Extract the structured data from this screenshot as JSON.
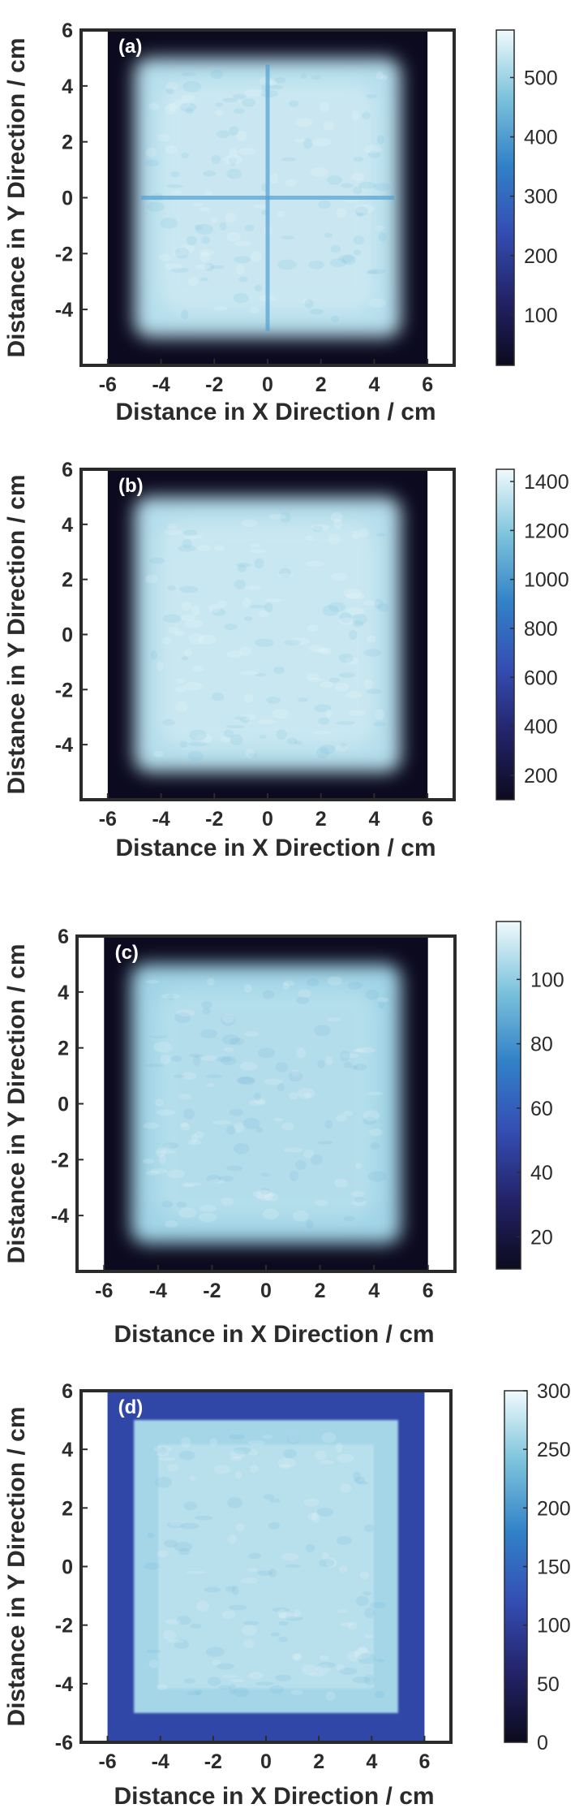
{
  "chart_data": [
    {
      "type": "heatmap",
      "panel_label": "(a)",
      "xlabel": "Distance in X Direction / cm",
      "ylabel": "Distance in Y Direction / cm",
      "xlim": [
        -7,
        7
      ],
      "ylim": [
        -6,
        6
      ],
      "xticks": [
        -6,
        -4,
        -2,
        0,
        2,
        4,
        6
      ],
      "yticks": [
        -4,
        -2,
        0,
        2,
        4,
        6
      ],
      "colorbar_ticks": [
        100,
        200,
        300,
        400,
        500
      ],
      "colorbar_range": [
        15,
        580
      ],
      "field_x": [
        -5.0,
        5.0
      ],
      "field_y": [
        -5.0,
        5.0
      ],
      "peak_value": 560,
      "detector_x": [
        -6.0,
        6.0
      ],
      "feature": "cross-shaped seam at x=0 and y=0"
    },
    {
      "type": "heatmap",
      "panel_label": "(b)",
      "xlabel": "Distance in X Direction / cm",
      "ylabel": "Distance in Y Direction / cm",
      "xlim": [
        -7,
        7
      ],
      "ylim": [
        -6,
        6
      ],
      "xticks": [
        -6,
        -4,
        -2,
        0,
        2,
        4,
        6
      ],
      "yticks": [
        -4,
        -2,
        0,
        2,
        4,
        6
      ],
      "colorbar_ticks": [
        200,
        400,
        600,
        800,
        1000,
        1200,
        1400
      ],
      "colorbar_range": [
        100,
        1450
      ],
      "field_x": [
        -5.0,
        5.0
      ],
      "field_y": [
        -5.0,
        5.0
      ],
      "peak_value": 1400,
      "detector_x": [
        -6.0,
        6.0
      ]
    },
    {
      "type": "heatmap",
      "panel_label": "(c)",
      "xlabel": "Distance in X Direction / cm",
      "ylabel": "Distance in Y Direction / cm",
      "xlim": [
        -7,
        7
      ],
      "ylim": [
        -6,
        6
      ],
      "xticks": [
        -6,
        -4,
        -2,
        0,
        2,
        4,
        6
      ],
      "yticks": [
        -4,
        -2,
        0,
        2,
        4,
        6
      ],
      "colorbar_ticks": [
        20,
        40,
        60,
        80,
        100
      ],
      "colorbar_range": [
        10,
        118
      ],
      "field_x": [
        -5.0,
        5.0
      ],
      "field_y": [
        -5.0,
        5.0
      ],
      "peak_value": 110,
      "detector_x": [
        -6.0,
        6.0
      ]
    },
    {
      "type": "heatmap",
      "panel_label": "(d)",
      "xlabel": "Distance in X Direction / cm",
      "ylabel": "Distance in Y Direction / cm",
      "xlim": [
        -7,
        7
      ],
      "ylim": [
        -6,
        6
      ],
      "xticks": [
        -6,
        -4,
        -2,
        0,
        2,
        4,
        6
      ],
      "yticks": [
        -6,
        -4,
        -2,
        0,
        2,
        4,
        6
      ],
      "colorbar_ticks": [
        0,
        50,
        100,
        150,
        200,
        250,
        300
      ],
      "colorbar_range": [
        0,
        300
      ],
      "field_x": [
        -5.0,
        5.0
      ],
      "field_y": [
        -5.0,
        5.0
      ],
      "peak_value": 280,
      "background_value": 110,
      "detector_x": [
        -6.0,
        6.0
      ]
    }
  ]
}
